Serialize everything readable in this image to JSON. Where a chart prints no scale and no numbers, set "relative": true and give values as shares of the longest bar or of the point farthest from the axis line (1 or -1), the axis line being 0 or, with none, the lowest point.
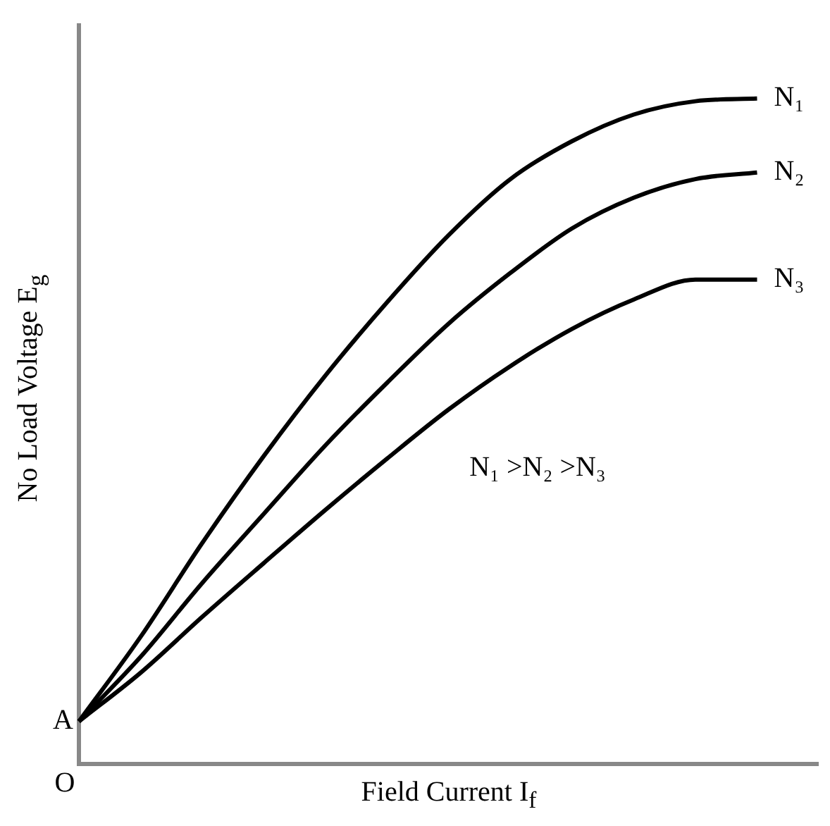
{
  "chart_data": {
    "type": "line",
    "relative": true,
    "xlabel": "Field Current I$_{f}$",
    "ylabel": "No Load Voltage E$_{g}$",
    "categories": [
      null,
      null,
      null,
      null,
      null,
      null,
      null,
      null,
      null,
      null,
      null,
      null,
      null
    ],
    "series": [
      {
        "name": "N₁",
        "color": "#000000",
        "values": [
          0.064,
          0.191,
          0.332,
          0.463,
          0.584,
          0.694,
          0.795,
          0.879,
          0.936,
          0.976,
          0.996,
          1,
          null
        ]
      },
      {
        "name": "N₂",
        "color": "#000000",
        "values": [
          0.064,
          0.161,
          0.272,
          0.376,
          0.479,
          0.573,
          0.662,
          0.738,
          0.805,
          0.851,
          0.879,
          0.889,
          null
        ]
      },
      {
        "name": "N₃",
        "color": "#000000",
        "values": [
          0.064,
          0.137,
          0.221,
          0.302,
          0.382,
          0.459,
          0.533,
          0.598,
          0.654,
          0.698,
          0.728,
          0.728,
          null
        ]
      }
    ],
    "annotations": [
      "A",
      "O",
      "N₁ >N₂ >N₃"
    ],
    "grid": false,
    "legend": false,
    "marker": "none",
    "line_style": "solid"
  }
}
